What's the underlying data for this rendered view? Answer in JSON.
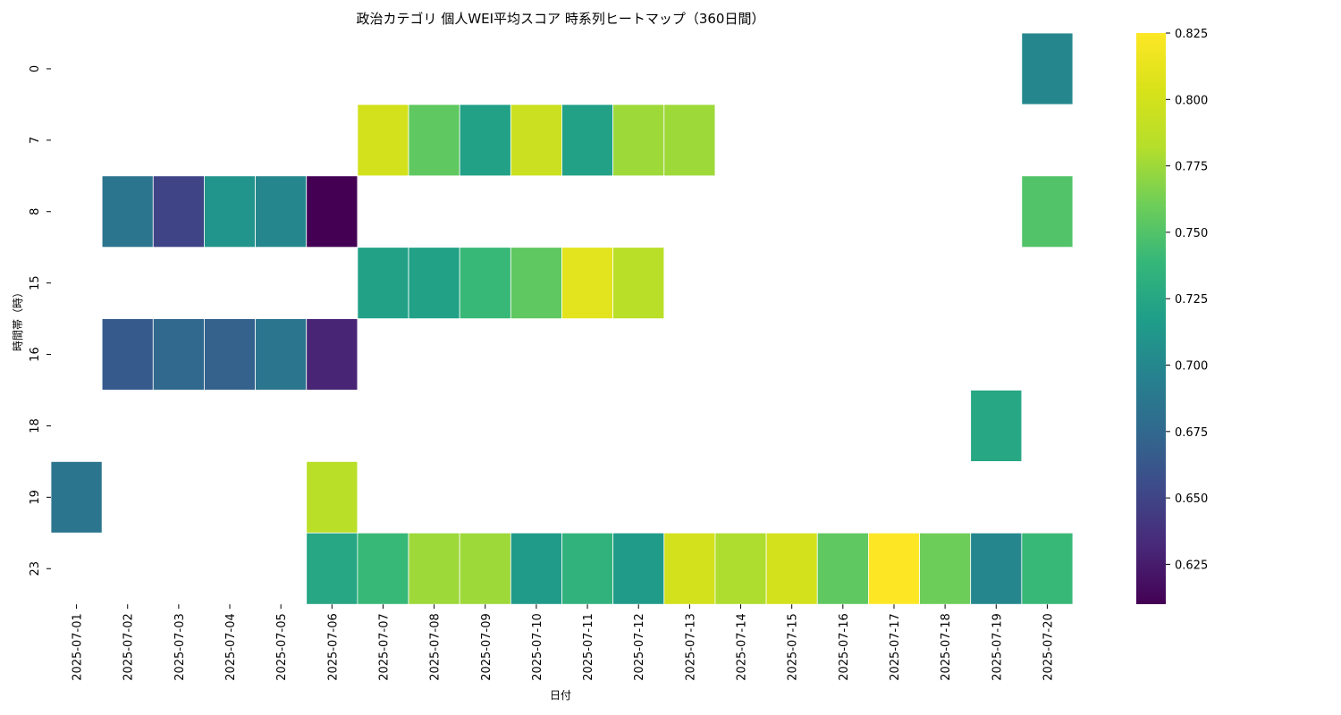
{
  "chart_data": {
    "type": "heatmap",
    "title": "政治カテゴリ 個人WEI平均スコア 時系列ヒートマップ（360日間）",
    "xlabel": "日付",
    "ylabel": "時間帯（時）",
    "x": [
      "2025-07-01",
      "2025-07-02",
      "2025-07-03",
      "2025-07-04",
      "2025-07-05",
      "2025-07-06",
      "2025-07-07",
      "2025-07-08",
      "2025-07-09",
      "2025-07-10",
      "2025-07-11",
      "2025-07-12",
      "2025-07-13",
      "2025-07-14",
      "2025-07-15",
      "2025-07-16",
      "2025-07-17",
      "2025-07-18",
      "2025-07-19",
      "2025-07-20"
    ],
    "y": [
      "0",
      "7",
      "8",
      "15",
      "16",
      "18",
      "19",
      "23"
    ],
    "colormap": "viridis",
    "vmin": 0.61,
    "vmax": 0.825,
    "colorbar_ticks": [
      "0.625",
      "0.650",
      "0.675",
      "0.700",
      "0.725",
      "0.750",
      "0.775",
      "0.800",
      "0.825"
    ],
    "values": [
      [
        null,
        null,
        null,
        null,
        null,
        null,
        null,
        null,
        null,
        null,
        null,
        null,
        null,
        null,
        null,
        null,
        null,
        null,
        null,
        0.7
      ],
      [
        null,
        null,
        null,
        null,
        null,
        null,
        0.8,
        0.755,
        0.72,
        0.795,
        0.72,
        0.775,
        0.775,
        null,
        null,
        null,
        null,
        null,
        null,
        null
      ],
      [
        null,
        0.685,
        0.65,
        0.71,
        0.7,
        0.61,
        null,
        null,
        null,
        null,
        null,
        null,
        null,
        null,
        null,
        null,
        null,
        null,
        null,
        0.75
      ],
      [
        null,
        null,
        null,
        null,
        null,
        null,
        0.72,
        0.72,
        0.74,
        0.755,
        0.81,
        0.785,
        null,
        null,
        null,
        null,
        null,
        null,
        null,
        null
      ],
      [
        null,
        0.665,
        0.675,
        0.67,
        0.685,
        0.63,
        null,
        null,
        null,
        null,
        null,
        null,
        null,
        null,
        null,
        null,
        null,
        null,
        null,
        null
      ],
      [
        null,
        null,
        null,
        null,
        null,
        null,
        null,
        null,
        null,
        null,
        null,
        null,
        null,
        null,
        null,
        null,
        null,
        null,
        0.725,
        null
      ],
      [
        0.685,
        null,
        null,
        null,
        null,
        0.785,
        null,
        null,
        null,
        null,
        null,
        null,
        null,
        null,
        null,
        null,
        null,
        null,
        null,
        null
      ],
      [
        null,
        null,
        null,
        null,
        null,
        0.725,
        0.74,
        0.775,
        0.775,
        0.715,
        0.735,
        0.715,
        0.8,
        0.78,
        0.8,
        0.755,
        0.825,
        0.76,
        0.7,
        0.74
      ]
    ]
  }
}
